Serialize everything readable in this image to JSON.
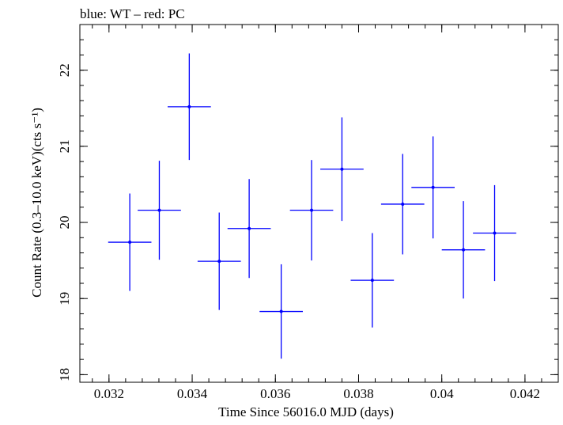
{
  "chart_data": {
    "type": "scatter",
    "title": "blue: WT – red: PC",
    "xlabel": "Time Since 56016.0 MJD (days)",
    "ylabel": "Count Rate (0.3–10.0 keV)(cts s⁻¹)",
    "xlim": [
      0.0313,
      0.0428
    ],
    "ylim": [
      17.9,
      22.6
    ],
    "xticks": [
      0.032,
      0.034,
      0.036,
      0.038,
      0.04,
      0.042
    ],
    "xtick_labels": [
      "0.032",
      "0.034",
      "0.036",
      "0.038",
      "0.04",
      "0.042"
    ],
    "yticks": [
      18,
      19,
      20,
      21,
      22
    ],
    "ytick_labels": [
      "18",
      "19",
      "20",
      "21",
      "22"
    ],
    "grid": false,
    "series": [
      {
        "color": "#0000ff",
        "points": [
          {
            "x": 0.0325,
            "y": 19.74,
            "xerr": 0.00052,
            "yerr": 0.64
          },
          {
            "x": 0.03321,
            "y": 20.16,
            "xerr": 0.00052,
            "yerr": 0.65
          },
          {
            "x": 0.03393,
            "y": 21.52,
            "xerr": 0.00052,
            "yerr": 0.7
          },
          {
            "x": 0.03465,
            "y": 19.49,
            "xerr": 0.00052,
            "yerr": 0.64
          },
          {
            "x": 0.03537,
            "y": 19.92,
            "xerr": 0.00052,
            "yerr": 0.65
          },
          {
            "x": 0.03614,
            "y": 18.83,
            "xerr": 0.00052,
            "yerr": 0.62
          },
          {
            "x": 0.03687,
            "y": 20.16,
            "xerr": 0.00052,
            "yerr": 0.66
          },
          {
            "x": 0.0376,
            "y": 20.7,
            "xerr": 0.00052,
            "yerr": 0.68
          },
          {
            "x": 0.03833,
            "y": 19.24,
            "xerr": 0.00052,
            "yerr": 0.62
          },
          {
            "x": 0.03906,
            "y": 20.24,
            "xerr": 0.00052,
            "yerr": 0.66
          },
          {
            "x": 0.03979,
            "y": 20.46,
            "xerr": 0.00052,
            "yerr": 0.67
          },
          {
            "x": 0.04052,
            "y": 19.64,
            "xerr": 0.00052,
            "yerr": 0.64
          },
          {
            "x": 0.04127,
            "y": 19.86,
            "xerr": 0.00052,
            "yerr": 0.63
          }
        ]
      }
    ]
  }
}
